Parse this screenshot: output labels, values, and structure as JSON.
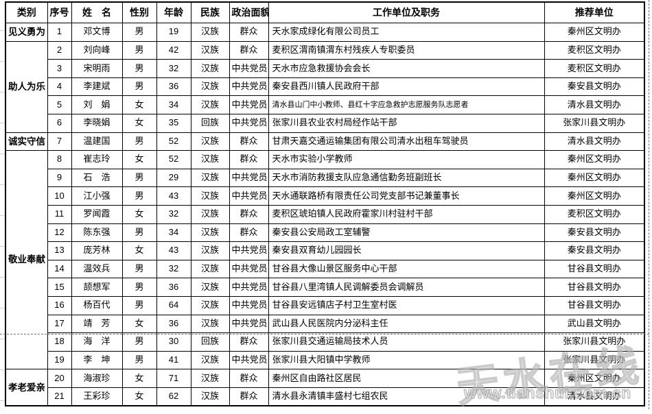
{
  "colors": {
    "grid": "#000000",
    "pagebreak_dash": "#6e6e6e",
    "watermark_gray": "#bdbdbd"
  },
  "watermark": {
    "logo": "天水在线",
    "url": "www.tianshui.com.cn"
  },
  "table": {
    "headers": {
      "category": "类别",
      "no": "序号",
      "name": "姓　名",
      "gender": "性别",
      "age": "年龄",
      "ethnicity": "民族",
      "political": "政治面貌",
      "work": "工作单位及职务",
      "recommender": "推荐单位"
    },
    "categories": [
      {
        "label": "见义勇为",
        "rows": "1"
      },
      {
        "label": "助人为乐",
        "rows": "2-6"
      },
      {
        "label": "诚实守信",
        "rows": "7"
      },
      {
        "label": "敬业奉献",
        "rows": "8-19"
      },
      {
        "label": "孝老爱亲",
        "rows": "20-21"
      }
    ],
    "rows": [
      {
        "no": "1",
        "name": "邓文博",
        "gender": "男",
        "age": "19",
        "ethnicity": "汉族",
        "political": "群众",
        "work": "天水家成绿化有限公司员工",
        "recommender": "秦州区文明办"
      },
      {
        "no": "2",
        "name": "刘向峰",
        "gender": "男",
        "age": "42",
        "ethnicity": "汉族",
        "political": "群众",
        "work": "麦积区渭南镇渭东村残疾人专职委员",
        "recommender": "麦积区文明办"
      },
      {
        "no": "3",
        "name": "宋明雨",
        "gender": "男",
        "age": "32",
        "ethnicity": "汉族",
        "political": "中共党员",
        "work": "天水市应急救援协会会长",
        "recommender": "麦积区文明办"
      },
      {
        "no": "4",
        "name": "李建斌",
        "gender": "男",
        "age": "36",
        "ethnicity": "汉族",
        "political": "中共党员",
        "work": "秦安县西川镇人民政府干部",
        "recommender": "秦安县文明办"
      },
      {
        "no": "5",
        "name": "刘　娟",
        "gender": "女",
        "age": "34",
        "ethnicity": "汉族",
        "political": "中共党员",
        "work": "清水县山门中小教师、县红十字应急救护志愿服务队志愿者",
        "recommender": "清水县文明办"
      },
      {
        "no": "6",
        "name": "李晓娟",
        "gender": "女",
        "age": "35",
        "ethnicity": "回族",
        "political": "中共党员",
        "work": "张家川县农业农村局经作站干部",
        "recommender": "张家川县文明办"
      },
      {
        "no": "7",
        "name": "温建国",
        "gender": "男",
        "age": "52",
        "ethnicity": "汉族",
        "political": "群众",
        "work": "甘肃天嘉交通运输集团有限公司清水出租车驾驶员",
        "recommender": "清水县文明办"
      },
      {
        "no": "8",
        "name": "崔志玲",
        "gender": "女",
        "age": "52",
        "ethnicity": "汉族",
        "political": "群众",
        "work": "天水市实验小学教师",
        "recommender": "秦州区文明办"
      },
      {
        "no": "9",
        "name": "石　浩",
        "gender": "男",
        "age": "29",
        "ethnicity": "汉族",
        "political": "中共党员",
        "work": "天水市消防救援支队应急通信勤务班副班长",
        "recommender": "秦州区文明办"
      },
      {
        "no": "10",
        "name": "江小强",
        "gender": "男",
        "age": "43",
        "ethnicity": "汉族",
        "political": "中共党员",
        "work": "天水通联路桥有限责任公司党支部书记兼董事长",
        "recommender": "秦州区文明办"
      },
      {
        "no": "11",
        "name": "罗闻霞",
        "gender": "女",
        "age": "32",
        "ethnicity": "汉族",
        "political": "群众",
        "work": "麦积区琥珀镇人民政府霍家川村驻村干部",
        "recommender": "麦积区文明办"
      },
      {
        "no": "12",
        "name": "陈东强",
        "gender": "男",
        "age": "34",
        "ethnicity": "汉族",
        "political": "群众",
        "work": "秦安县公安局政工室辅警",
        "recommender": "秦安县文明办"
      },
      {
        "no": "13",
        "name": "庞芳林",
        "gender": "女",
        "age": "43",
        "ethnicity": "汉族",
        "political": "中共党员",
        "work": "秦安县双育幼儿园园长",
        "recommender": "秦安县文明办"
      },
      {
        "no": "14",
        "name": "温效兵",
        "gender": "男",
        "age": "32",
        "ethnicity": "汉族",
        "political": "中共党员",
        "work": "甘谷县大像山景区服务中心干部",
        "recommender": "甘谷县文明办"
      },
      {
        "no": "15",
        "name": "颉想军",
        "gender": "男",
        "age": "36",
        "ethnicity": "汉族",
        "political": "中共党员",
        "work": "甘谷县八里湾镇人民调解委员会调解员",
        "recommender": "甘谷县文明办"
      },
      {
        "no": "16",
        "name": "杨百代",
        "gender": "男",
        "age": "64",
        "ethnicity": "汉族",
        "political": "中共党员",
        "work": "甘谷县安远镇店子村卫生室村医",
        "recommender": "甘谷县文明办"
      },
      {
        "no": "17",
        "name": "靖　芳",
        "gender": "女",
        "age": "36",
        "ethnicity": "汉族",
        "political": "中共党员",
        "work": "武山县人民医院内分泌科主任",
        "recommender": "武山县文明办"
      },
      {
        "no": "18",
        "name": "海　洋",
        "gender": "男",
        "age": "30",
        "ethnicity": "回族",
        "political": "群众",
        "work": "张家川县交通运输局技术人员",
        "recommender": "张家川县文明办"
      },
      {
        "no": "19",
        "name": "李　坤",
        "gender": "男",
        "age": "41",
        "ethnicity": "汉族",
        "political": "中共党员",
        "work": "张家川县大阳镇中学教师",
        "recommender": "张家川县文明办"
      },
      {
        "no": "20",
        "name": "海淑珍",
        "gender": "女",
        "age": "71",
        "ethnicity": "汉族",
        "political": "群众",
        "work": "秦州区自由路社区居民",
        "recommender": "秦州区文明办"
      },
      {
        "no": "21",
        "name": "王彩珍",
        "gender": "女",
        "age": "62",
        "ethnicity": "汉族",
        "political": "群众",
        "work": "清水县永清镇丰盛村七组农民",
        "recommender": "清水县文明办"
      }
    ]
  }
}
